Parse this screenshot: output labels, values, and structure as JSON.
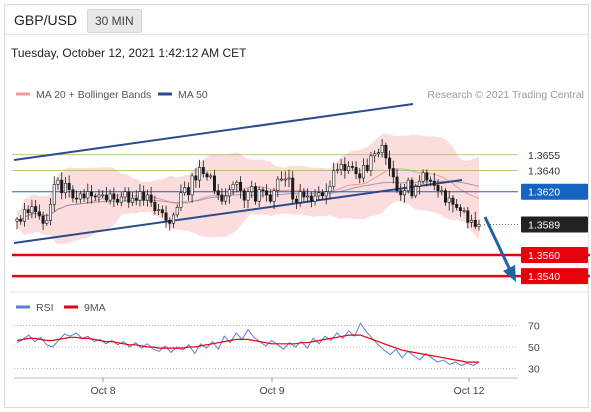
{
  "header": {
    "symbol": "GBP/USD",
    "timeframe": "30 MIN",
    "timestamp": "Tuesday, October 12, 2021 1:42:12 AM CET"
  },
  "legend": {
    "bollinger_label": "MA 20 + Bollinger Bands",
    "ma50_label": "MA 50",
    "copyright": "Research © 2021 Trading Central",
    "rsi_label": "RSI",
    "ma9_label": "9MA"
  },
  "colors": {
    "bull_candle": "#ffffff",
    "bear_candle": "#1a1a1a",
    "bollinger_fill": "#fbd7d7",
    "ma20": "#f19a9a",
    "ma50": "#2b4c8c",
    "channel": "#2b4c8c",
    "support": "#e8000b",
    "resistance": "#8fc155",
    "pivot": "#1565c0",
    "current_label": "#222222",
    "rsi": "#5b7fd6",
    "rsi_ma": "#e8000b",
    "arrow": "#1f62a8"
  },
  "chart_data": [
    {
      "type": "candlestick",
      "title": "GBP/USD 30 MIN",
      "x_ticks": [
        "Oct 8",
        "Oct 9",
        "Oct 12"
      ],
      "ylim": [
        1.3525,
        1.3705
      ],
      "levels": [
        {
          "value": 1.3655,
          "label": "1.3655",
          "kind": "resistance"
        },
        {
          "value": 1.364,
          "label": "1.3640",
          "kind": "resistance"
        },
        {
          "value": 1.362,
          "label": "1.3620",
          "kind": "pivot"
        },
        {
          "value": 1.3589,
          "label": "1.3589",
          "kind": "current"
        },
        {
          "value": 1.356,
          "label": "1.3560",
          "kind": "support"
        },
        {
          "value": 1.354,
          "label": "1.3540",
          "kind": "support"
        }
      ],
      "series": [
        {
          "name": "Price",
          "values": [
            1.3594,
            1.3592,
            1.3603,
            1.36,
            1.3606,
            1.3601,
            1.3597,
            1.359,
            1.3593,
            1.3608,
            1.3627,
            1.3631,
            1.3619,
            1.3628,
            1.3622,
            1.3614,
            1.3613,
            1.3618,
            1.3614,
            1.362,
            1.3616,
            1.3615,
            1.3617,
            1.3617,
            1.3612,
            1.3618,
            1.3613,
            1.361,
            1.3615,
            1.362,
            1.361,
            1.3614,
            1.3612,
            1.362,
            1.3612,
            1.3617,
            1.361,
            1.3602,
            1.3603,
            1.36,
            1.3593,
            1.359,
            1.3598,
            1.3605,
            1.3619,
            1.3624,
            1.3617,
            1.3635,
            1.3631,
            1.3643,
            1.3637,
            1.3634,
            1.3635,
            1.3621,
            1.3617,
            1.3611,
            1.3616,
            1.3622,
            1.3627,
            1.3629,
            1.3621,
            1.3612,
            1.362,
            1.3625,
            1.3611,
            1.3622,
            1.3621,
            1.3617,
            1.3611,
            1.3621,
            1.3632,
            1.3632,
            1.3632,
            1.3633,
            1.3613,
            1.361,
            1.362,
            1.3615,
            1.3616,
            1.3611,
            1.3616,
            1.3619,
            1.3616,
            1.362,
            1.3625,
            1.364,
            1.3641,
            1.3646,
            1.364,
            1.3644,
            1.3643,
            1.3637,
            1.3633,
            1.3645,
            1.364,
            1.3654,
            1.3656,
            1.3657,
            1.3664,
            1.3652,
            1.3642,
            1.3634,
            1.3621,
            1.3617,
            1.3621,
            1.3631,
            1.3616,
            1.3625,
            1.363,
            1.3638,
            1.3631,
            1.363,
            1.3626,
            1.3621,
            1.3621,
            1.361,
            1.3614,
            1.3608,
            1.3605,
            1.3602,
            1.3602,
            1.3591,
            1.3593,
            1.3587,
            1.3589
          ]
        },
        {
          "name": "MA 20 + Bollinger Bands"
        },
        {
          "name": "MA 50"
        }
      ]
    },
    {
      "type": "line",
      "title": "RSI",
      "ylim": [
        25,
        75
      ],
      "y_ticks": [
        30,
        50,
        70
      ],
      "series": [
        {
          "name": "RSI",
          "values": [
            54,
            57,
            61,
            55,
            59,
            52,
            50,
            56,
            62,
            60,
            63,
            58,
            60,
            55,
            57,
            53,
            56,
            52,
            55,
            50,
            54,
            49,
            53,
            48,
            46,
            51,
            45,
            50,
            47,
            52,
            44,
            53,
            49,
            55,
            48,
            60,
            54,
            63,
            57,
            66,
            59,
            55,
            51,
            56,
            52,
            48,
            54,
            50,
            55,
            49,
            58,
            53,
            60,
            56,
            63,
            58,
            65,
            60,
            72,
            64,
            58,
            52,
            47,
            43,
            48,
            40,
            46,
            42,
            38,
            44,
            40,
            36,
            38,
            34,
            36,
            33,
            35,
            33,
            36
          ]
        },
        {
          "name": "9MA",
          "values": [
            56,
            57,
            58,
            58,
            57,
            56,
            56,
            57,
            58,
            59,
            59,
            58,
            58,
            57,
            56,
            55,
            55,
            54,
            53,
            52,
            52,
            51,
            50,
            50,
            49,
            49,
            49,
            49,
            49,
            50,
            50,
            51,
            52,
            53,
            54,
            55,
            56,
            57,
            57,
            57,
            56,
            55,
            54,
            53,
            53,
            53,
            53,
            53,
            54,
            54,
            55,
            56,
            57,
            58,
            59,
            60,
            61,
            61,
            61,
            59,
            57,
            55,
            53,
            51,
            49,
            47,
            46,
            45,
            44,
            43,
            42,
            41,
            40,
            39,
            38,
            37,
            36,
            36,
            36
          ]
        }
      ]
    }
  ]
}
